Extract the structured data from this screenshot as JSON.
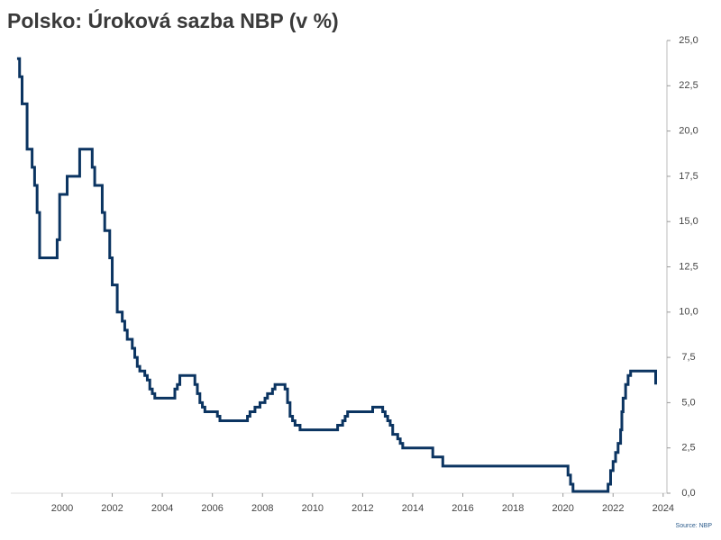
{
  "chart_data": {
    "type": "step-line",
    "title": "Polsko: Úroková sazba NBP (v %)",
    "source": "Source: NBP",
    "x": [
      1998.2,
      1998.3,
      1998.4,
      1998.6,
      1998.8,
      1998.9,
      1999.0,
      1999.1,
      1999.8,
      1999.9,
      2000.2,
      2000.7,
      2001.2,
      2001.3,
      2001.6,
      2001.7,
      2001.9,
      2002.0,
      2002.2,
      2002.4,
      2002.5,
      2002.6,
      2002.8,
      2002.9,
      2003.0,
      2003.1,
      2003.3,
      2003.4,
      2003.5,
      2003.6,
      2003.7,
      2004.5,
      2004.6,
      2004.7,
      2005.3,
      2005.4,
      2005.5,
      2005.6,
      2005.7,
      2006.2,
      2006.3,
      2007.4,
      2007.5,
      2007.7,
      2007.9,
      2008.1,
      2008.2,
      2008.4,
      2008.5,
      2008.9,
      2009.0,
      2009.1,
      2009.2,
      2009.3,
      2009.5,
      2011.0,
      2011.2,
      2011.3,
      2011.4,
      2012.4,
      2012.8,
      2012.9,
      2013.0,
      2013.1,
      2013.2,
      2013.4,
      2013.5,
      2013.6,
      2014.8,
      2015.2,
      2020.2,
      2020.3,
      2020.4,
      2021.8,
      2021.9,
      2022.0,
      2022.1,
      2022.2,
      2022.3,
      2022.35,
      2022.4,
      2022.5,
      2022.6,
      2022.7,
      2023.7
    ],
    "values": [
      24.0,
      23.0,
      21.5,
      19.0,
      18.0,
      17.0,
      15.5,
      13.0,
      14.0,
      16.5,
      17.5,
      19.0,
      18.0,
      17.0,
      15.5,
      14.5,
      13.0,
      11.5,
      10.0,
      9.5,
      9.0,
      8.5,
      8.0,
      7.5,
      7.0,
      6.75,
      6.5,
      6.25,
      5.75,
      5.5,
      5.25,
      5.75,
      6.0,
      6.5,
      6.0,
      5.5,
      5.0,
      4.75,
      4.5,
      4.25,
      4.0,
      4.25,
      4.5,
      4.75,
      5.0,
      5.25,
      5.5,
      5.75,
      6.0,
      5.75,
      5.0,
      4.25,
      4.0,
      3.75,
      3.5,
      3.75,
      4.0,
      4.25,
      4.5,
      4.75,
      4.5,
      4.25,
      4.0,
      3.75,
      3.25,
      3.0,
      2.75,
      2.5,
      2.0,
      1.5,
      1.0,
      0.5,
      0.1,
      0.5,
      1.25,
      1.75,
      2.25,
      2.75,
      3.5,
      4.5,
      5.25,
      6.0,
      6.5,
      6.75,
      6.0
    ],
    "color": "#0b3461",
    "xlim": [
      1997.95,
      2024.15
    ],
    "xticks": [
      2000,
      2002,
      2004,
      2006,
      2008,
      2010,
      2012,
      2014,
      2016,
      2018,
      2020,
      2022,
      2024
    ],
    "ylim": [
      0,
      25
    ],
    "yticks": [
      {
        "value": 0,
        "label": "0,0"
      },
      {
        "value": 2.5,
        "label": "2,5"
      },
      {
        "value": 5,
        "label": "5,0"
      },
      {
        "value": 7.5,
        "label": "7,5"
      },
      {
        "value": 10,
        "label": "10,0"
      },
      {
        "value": 12.5,
        "label": "12,5"
      },
      {
        "value": 15,
        "label": "15,0"
      },
      {
        "value": 17.5,
        "label": "17,5"
      },
      {
        "value": 20,
        "label": "20,0"
      },
      {
        "value": 22.5,
        "label": "22,5"
      },
      {
        "value": 25,
        "label": "25,0"
      }
    ],
    "y_axis_side": "right"
  }
}
